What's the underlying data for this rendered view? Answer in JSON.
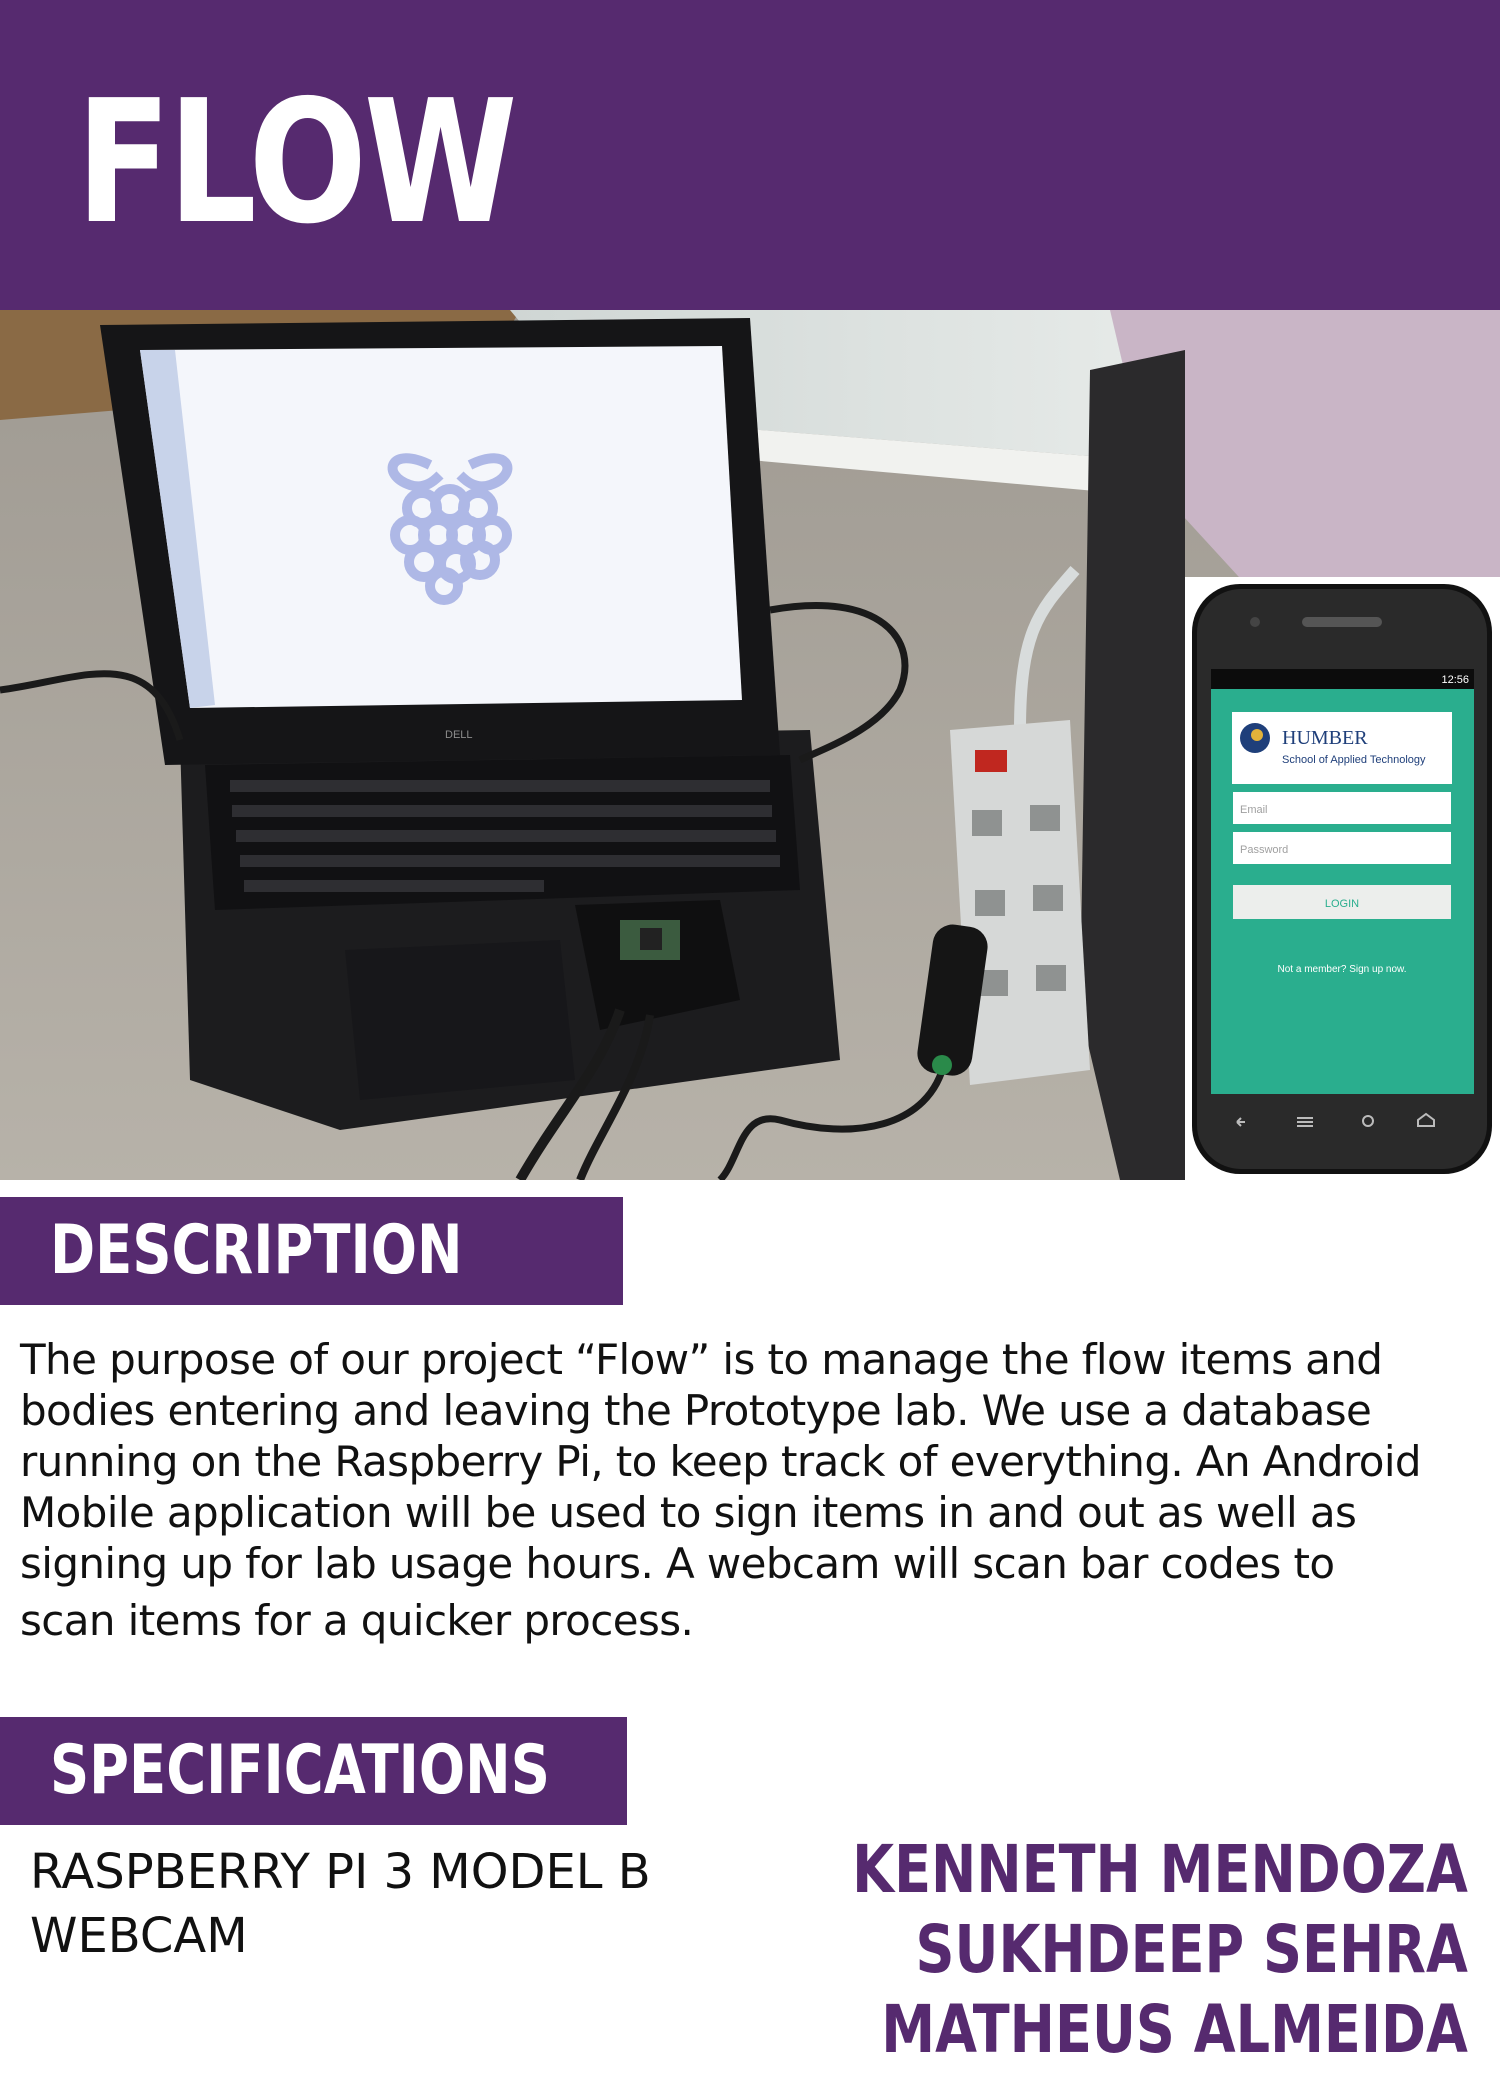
{
  "header": {
    "title": "FLOW"
  },
  "photo": {
    "laptop_brand": "DELL",
    "phone_screen": {
      "status_time": "12:56",
      "brand_name": "HUMBER",
      "brand_subtitle": "School of Applied Technology",
      "email_placeholder": "Email",
      "password_placeholder": "Password",
      "login_label": "LOGIN",
      "signup_text": "Not a member? Sign up now."
    }
  },
  "description": {
    "heading": "DESCRIPTION",
    "lines": [
      "The purpose of our project “Flow” is to manage the flow items and",
      "bodies entering and leaving the Prototype lab. We use a database",
      "running on the Raspberry Pi, to keep track of everything. An Android",
      "Mobile application will be used to sign items in and out as well as",
      "signing up for lab usage hours. A webcam will scan bar codes to",
      "scan items for a quicker process."
    ]
  },
  "specifications": {
    "heading": "SPECIFICATIONS",
    "items": [
      "RASPBERRY PI 3 MODEL B",
      "WEBCAM"
    ]
  },
  "authors": [
    "KENNETH MENDOZA",
    "SUKHDEEP SEHRA",
    "MATHEUS ALMEIDA"
  ],
  "colors": {
    "brand": "#562a6f",
    "app_green": "#2aae8e"
  }
}
